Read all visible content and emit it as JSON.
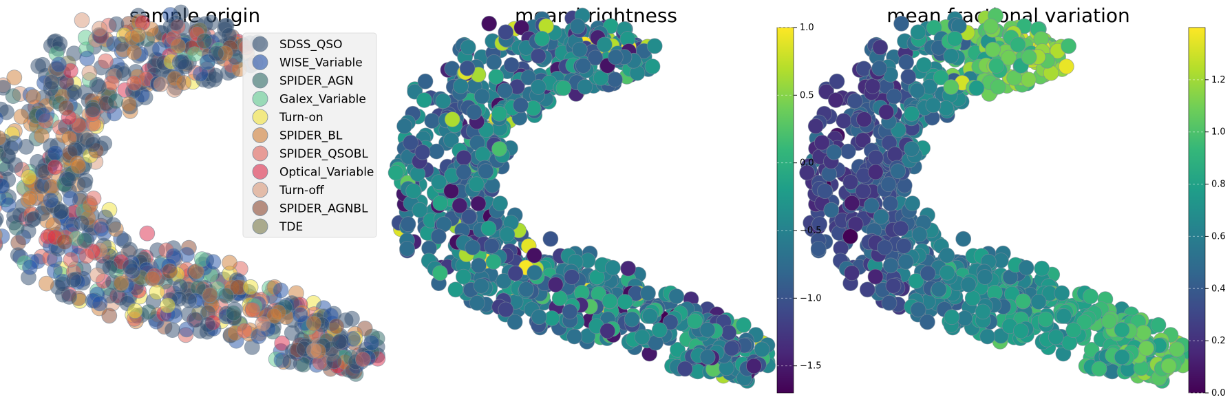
{
  "chart_data": [
    {
      "type": "scatter",
      "title": "sample origin",
      "legend_position": "upper-right",
      "legend": [
        {
          "name": "SDSS_QSO",
          "color": "#2f4b6e"
        },
        {
          "name": "WISE_Variable",
          "color": "#1f4fa6"
        },
        {
          "name": "SPIDER_AGN",
          "color": "#2e6a66"
        },
        {
          "name": "Galex_Variable",
          "color": "#5fc98f"
        },
        {
          "name": "Turn-on",
          "color": "#f2e33a"
        },
        {
          "name": "SPIDER_BL",
          "color": "#cf7d35"
        },
        {
          "name": "SPIDER_QSOBL",
          "color": "#e0625a"
        },
        {
          "name": "Optical_Variable",
          "color": "#dc2a4a"
        },
        {
          "name": "Turn-off",
          "color": "#d99878"
        },
        {
          "name": "SPIDER_AGNBL",
          "color": "#8c4a32"
        },
        {
          "name": "TDE",
          "color": "#7a7a4a"
        }
      ],
      "axes_visible": false
    },
    {
      "type": "scatter",
      "title": "mean brightness",
      "colormap": "viridis",
      "colorbar": {
        "min": -1.7,
        "max": 1.0,
        "ticks": [
          "1.0",
          "0.5",
          "0.0",
          "−0.5",
          "−1.0",
          "−1.5"
        ],
        "tick_values": [
          1.0,
          0.5,
          0.0,
          -0.5,
          -1.0,
          -1.5
        ]
      },
      "axes_visible": false
    },
    {
      "type": "scatter",
      "title": "mean fractional variation",
      "colormap": "viridis",
      "colorbar": {
        "min": 0.0,
        "max": 1.4,
        "ticks": [
          "1.2",
          "1.0",
          "0.8",
          "0.6",
          "0.4",
          "0.2",
          "0.0"
        ],
        "tick_values": [
          1.2,
          1.0,
          0.8,
          0.6,
          0.4,
          0.2,
          0.0
        ]
      },
      "axes_visible": false
    }
  ],
  "colors": {
    "viridis": [
      "#440154",
      "#482878",
      "#3e4989",
      "#31688e",
      "#26828e",
      "#1f9e89",
      "#35b779",
      "#6ece58",
      "#b5de2b",
      "#fde725"
    ],
    "point_edge": "#7a8a9a",
    "legend_bg": "#f0f0f0"
  }
}
